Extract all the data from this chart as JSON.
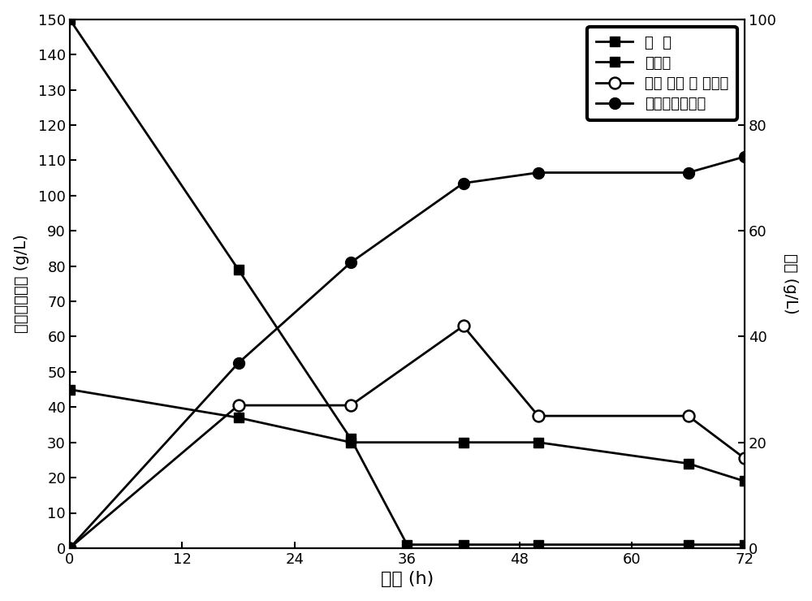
{
  "title": "",
  "xlabel": "时间 (h)",
  "ylabel_left": "药葡糖和木糖 (g/L)",
  "ylabel_right": "乙醇 (g/L)",
  "ylabel_right_line1": "乙",
  "ylabel_right_line2": "醇",
  "ylabel_right_line3": "(g/L)",
  "xlim": [
    0,
    72
  ],
  "ylim_left": [
    0,
    150
  ],
  "ylim_right": [
    0,
    100
  ],
  "xticks": [
    0,
    12,
    24,
    36,
    48,
    60,
    72
  ],
  "yticks_left": [
    0,
    10,
    20,
    30,
    40,
    50,
    60,
    70,
    80,
    90,
    100,
    110,
    120,
    130,
    140,
    150
  ],
  "yticks_right": [
    0,
    20,
    40,
    60,
    80,
    100
  ],
  "xylose_x": [
    0,
    18,
    30,
    42,
    50,
    66,
    72
  ],
  "xylose_y": [
    45,
    37,
    30,
    30,
    30,
    24,
    19
  ],
  "glucose_x": [
    0,
    18,
    30,
    36,
    42,
    50,
    66,
    72
  ],
  "glucose_y": [
    150,
    79,
    31,
    1,
    1,
    1,
    1,
    1
  ],
  "ethanol_fermentor_x": [
    0,
    18,
    30,
    42,
    50,
    66,
    72
  ],
  "ethanol_fermentor_y": [
    0,
    27,
    27,
    42,
    25,
    25,
    17
  ],
  "ethanol_total_x": [
    0,
    18,
    30,
    42,
    50,
    66,
    72
  ],
  "ethanol_total_y": [
    0,
    35,
    54,
    69,
    71,
    71,
    74
  ],
  "legend_labels": [
    "木  糖",
    "药葡糖",
    "发酵 罐中 乙 醇含量",
    "总收集的乙醇量"
  ],
  "line_color": "#000000",
  "bg_color": "#ffffff"
}
